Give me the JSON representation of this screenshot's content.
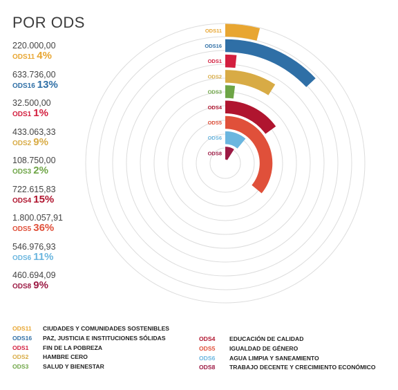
{
  "title": "POR ODS",
  "colors": {
    "ODS11": "#e8a632",
    "ODS16": "#2f6fa6",
    "ODS1": "#d31f3f",
    "ODS2": "#d8ab45",
    "ODS3": "#6ea546",
    "ODS4": "#b0152f",
    "ODS5": "#e0503a",
    "ODS6": "#6bb6df",
    "ODS8": "#9c1a44",
    "grid": "#dcdcdc"
  },
  "stats": [
    {
      "value": "220.000,00",
      "code": "ODS11",
      "pct": "4%"
    },
    {
      "value": "633.736,00",
      "code": "ODS16",
      "pct": "13%"
    },
    {
      "value": "32.500,00",
      "code": "ODS1",
      "pct": "1%"
    },
    {
      "value": "433.063,33",
      "code": "ODS2",
      "pct": "9%"
    },
    {
      "value": "108.750,00",
      "code": "ODS3",
      "pct": "2%"
    },
    {
      "value": "722.615,83",
      "code": "ODS4",
      "pct": "15%"
    },
    {
      "value": "1.800.057,91",
      "code": "ODS5",
      "pct": "36%"
    },
    {
      "value": "546.976,93",
      "code": "ODS6",
      "pct": "11%"
    },
    {
      "value": "460.694,09",
      "code": "ODS8",
      "pct": "9%"
    }
  ],
  "legend_left": [
    {
      "code": "ODS11",
      "label": "CIUDADES Y COMUNIDADES SOSTENIBLES"
    },
    {
      "code": "ODS16",
      "label": "PAZ, JUSTICIA E INSTITUCIONES SÓLIDAS"
    },
    {
      "code": "ODS1",
      "label": "FIN DE LA POBREZA"
    },
    {
      "code": "ODS2",
      "label": "HAMBRE CERO"
    },
    {
      "code": "ODS3",
      "label": "SALUD Y BIENESTAR"
    }
  ],
  "legend_right": [
    {
      "code": "ODS4",
      "label": "EDUCACIÓN DE CALIDAD"
    },
    {
      "code": "ODS5",
      "label": "IGUALDAD DE GÉNERO"
    },
    {
      "code": "ODS6",
      "label": "AGUA LIMPIA Y SANEAMIENTO"
    },
    {
      "code": "ODS8",
      "label": "TRABAJO DECENTE Y CRECIMIENTO ECONÓMICO"
    }
  ],
  "chart_data": {
    "type": "radial-bar",
    "title": "POR ODS",
    "max_percent": 100,
    "categories": [
      "ODS11",
      "ODS16",
      "ODS1",
      "ODS2",
      "ODS3",
      "ODS4",
      "ODS5",
      "ODS6",
      "ODS8"
    ],
    "values": [
      220000.0,
      633736.0,
      32500.0,
      433063.33,
      108750.0,
      722615.83,
      1800057.91,
      546976.93,
      460694.09
    ],
    "percent": [
      4,
      13,
      1,
      9,
      2,
      15,
      36,
      11,
      9
    ]
  }
}
